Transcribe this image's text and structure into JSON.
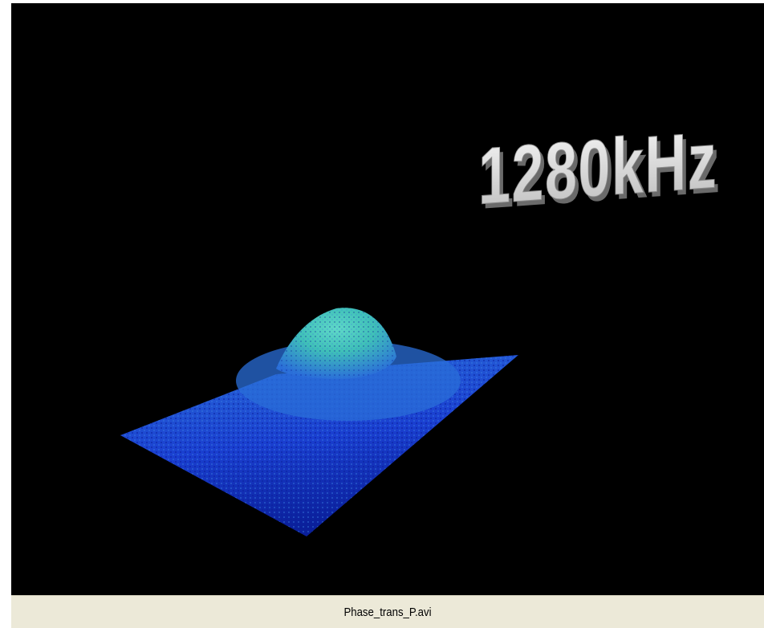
{
  "video": {
    "overlay_text": "1280kHz",
    "background_color": "#000000",
    "surface_colors": {
      "base": "#1a3fd0",
      "base_dark": "#0a1f9a",
      "mid": "#2a6ed8",
      "peak": "#3fc0b8",
      "peak_light": "#5fd8c8"
    },
    "text_color": "#e8e8e8",
    "text_shadow_color": "#6a6a6a"
  },
  "status_bar": {
    "filename": "Phase_trans_P.avi",
    "background_color": "#ece9d8"
  }
}
